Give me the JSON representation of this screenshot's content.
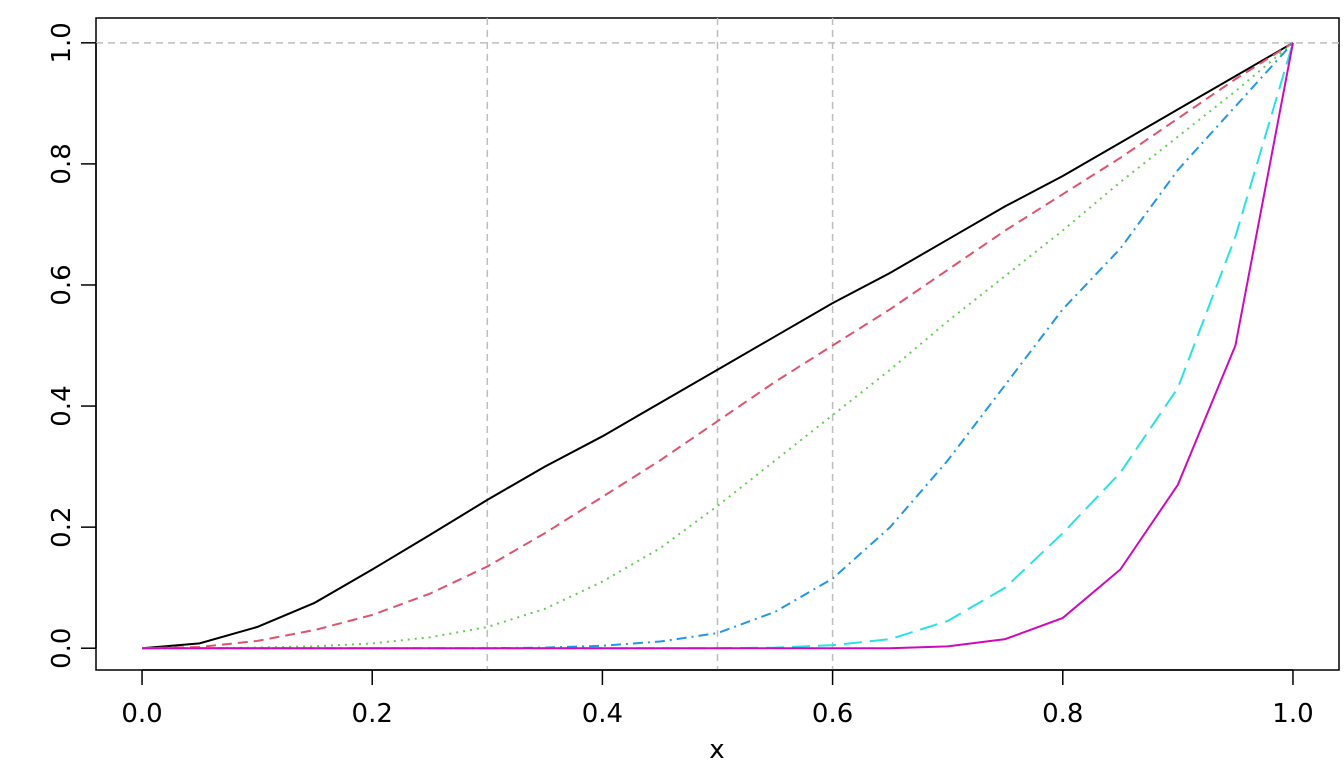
{
  "chart_data": {
    "type": "line",
    "x_label": "x",
    "x": [
      0,
      0.05,
      0.1,
      0.15,
      0.2,
      0.25,
      0.3,
      0.35,
      0.4,
      0.45,
      0.5,
      0.55,
      0.6,
      0.65,
      0.7,
      0.75,
      0.8,
      0.85,
      0.9,
      0.95,
      1
    ],
    "series": [
      {
        "color": "#000000",
        "dash": "solid",
        "values": [
          0,
          0.008,
          0.035,
          0.075,
          0.13,
          0.187,
          0.245,
          0.3,
          0.35,
          0.405,
          0.46,
          0.515,
          0.57,
          0.62,
          0.675,
          0.73,
          0.78,
          0.835,
          0.89,
          0.945,
          1
        ]
      },
      {
        "color": "#DF536B",
        "dash": "dashed",
        "values": [
          0,
          0.002,
          0.012,
          0.03,
          0.055,
          0.09,
          0.135,
          0.19,
          0.25,
          0.31,
          0.375,
          0.44,
          0.5,
          0.56,
          0.625,
          0.69,
          0.75,
          0.81,
          0.875,
          0.94,
          1
        ]
      },
      {
        "color": "#61D04F",
        "dash": "dotted",
        "values": [
          0,
          0,
          0.001,
          0.003,
          0.008,
          0.018,
          0.035,
          0.065,
          0.11,
          0.165,
          0.235,
          0.31,
          0.385,
          0.46,
          0.54,
          0.615,
          0.69,
          0.77,
          0.845,
          0.92,
          1
        ]
      },
      {
        "color": "#2297E6",
        "dash": "dotdash",
        "values": [
          0,
          0,
          0,
          0,
          0,
          0,
          0,
          0.001,
          0.004,
          0.011,
          0.025,
          0.06,
          0.115,
          0.2,
          0.31,
          0.435,
          0.56,
          0.66,
          0.79,
          0.895,
          1
        ]
      },
      {
        "color": "#28E2E5",
        "dash": "longdash",
        "values": [
          0,
          0,
          0,
          0,
          0,
          0,
          0,
          0,
          0,
          0,
          0,
          0.001,
          0.005,
          0.015,
          0.045,
          0.1,
          0.19,
          0.29,
          0.43,
          0.68,
          1
        ]
      },
      {
        "color": "#CD0BBC",
        "dash": "solid",
        "values": [
          0,
          0,
          0,
          0,
          0,
          0,
          0,
          0,
          0,
          0,
          0,
          0,
          0,
          0,
          0.003,
          0.015,
          0.05,
          0.13,
          0.27,
          0.5,
          1
        ]
      }
    ],
    "vlines": [
      0.3,
      0.5,
      0.6
    ],
    "hlines": [
      1
    ],
    "xlim": [
      -0.04,
      1.04
    ],
    "ylim": [
      -0.036,
      1.041
    ],
    "xticks": [
      {
        "value": 0,
        "label": "0.0"
      },
      0.2,
      0.4,
      0.6,
      0.8,
      {
        "value": 1,
        "label": "1.0"
      }
    ],
    "yticks": [
      {
        "value": 0,
        "label": "0.0"
      },
      0.2,
      0.4,
      0.6,
      0.8,
      {
        "value": 1,
        "label": "1.0"
      }
    ]
  }
}
